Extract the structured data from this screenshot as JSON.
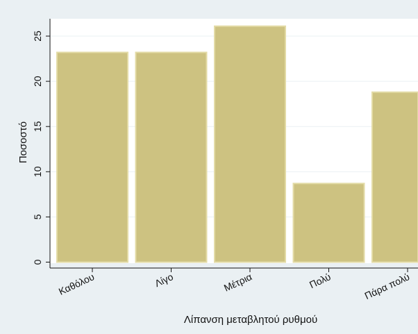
{
  "chart_data": {
    "type": "bar",
    "title": "",
    "xlabel": "Λίπανση μεταβλητού ρυθμού",
    "ylabel": "Ποσοστό",
    "categories": [
      "Καθόλου",
      "Λίγο",
      "Μέτρια",
      "Πολύ",
      "Πάρα πολύ"
    ],
    "values": [
      23.2,
      23.2,
      26.1,
      8.7,
      18.8
    ],
    "ylim": [
      0,
      27
    ],
    "yticks": [
      0,
      5,
      10,
      15,
      20,
      25
    ],
    "grid": "horizontal",
    "legend": "none"
  },
  "colors": {
    "outer_background": "#eaf0f3",
    "plot_background": "#ffffff",
    "bar_fill": "#cdc281",
    "bar_edge": "#e3dba6",
    "grid": "#eaf0f3",
    "axis": "#111111"
  }
}
